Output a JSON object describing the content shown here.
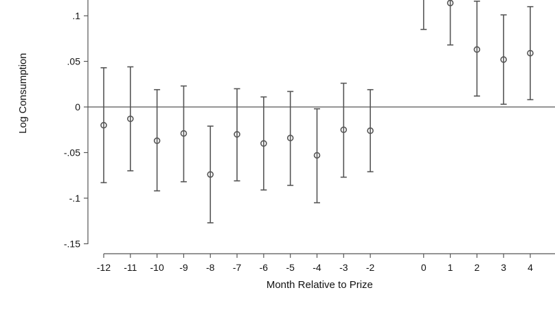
{
  "chart_data": {
    "type": "scatter",
    "title": "",
    "xlabel": "Month Relative to Prize",
    "ylabel": "Log Consumption",
    "x": [
      -12,
      -11,
      -10,
      -9,
      -8,
      -7,
      -6,
      -5,
      -4,
      -3,
      -2,
      0,
      1,
      2,
      3,
      4
    ],
    "x_tick_labels": [
      "-12",
      "-11",
      "-10",
      "-9",
      "-8",
      "-7",
      "-6",
      "-5",
      "-4",
      "-3",
      "-2",
      "0",
      "1",
      "2",
      "3",
      "4"
    ],
    "y_ticks": [
      0.1,
      0.05,
      0,
      -0.05,
      -0.1,
      -0.15
    ],
    "y_tick_labels": [
      ".1",
      ".05",
      "0",
      "-.05",
      "-.1",
      "-.15"
    ],
    "ylim": [
      -0.15,
      0.117
    ],
    "xlim": [
      -12.2,
      4.85
    ],
    "series": [
      {
        "estimate": [
          -0.02,
          -0.013,
          -0.037,
          -0.029,
          -0.074,
          -0.03,
          -0.04,
          -0.034,
          -0.053,
          -0.025,
          -0.026,
          null,
          0.114,
          0.063,
          0.052,
          0.059
        ],
        "ci_low": [
          -0.083,
          -0.07,
          -0.092,
          -0.082,
          -0.127,
          -0.081,
          -0.091,
          -0.086,
          -0.105,
          -0.077,
          -0.071,
          0.085,
          0.068,
          0.012,
          0.003,
          0.008
        ],
        "ci_high": [
          0.043,
          0.044,
          0.019,
          0.023,
          -0.021,
          0.02,
          0.011,
          0.017,
          -0.002,
          0.026,
          0.019,
          0.14,
          0.14,
          0.116,
          0.101,
          0.11
        ]
      }
    ],
    "reference_line_y": 0,
    "grid": false,
    "legend": "none",
    "colors": {
      "marks": "#555555",
      "text": "#111111"
    }
  }
}
